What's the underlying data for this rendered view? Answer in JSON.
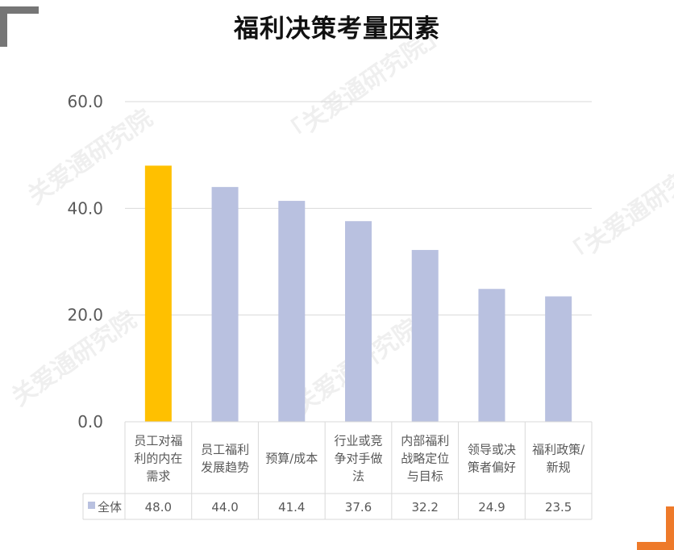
{
  "chart_data": {
    "type": "bar",
    "title": "福利决策考量因素",
    "categories": [
      [
        "员工对福",
        "利的内在",
        "需求"
      ],
      [
        "员工福利",
        "发展趋势"
      ],
      [
        "预算/成本"
      ],
      [
        "行业或竞",
        "争对手做",
        "法"
      ],
      [
        "内部福利",
        "战略定位",
        "与目标"
      ],
      [
        "领导或决",
        "策者偏好"
      ],
      [
        "福利政策/",
        "新规"
      ]
    ],
    "series": [
      {
        "name": "全体",
        "values": [
          48.0,
          44.0,
          41.4,
          37.6,
          32.2,
          24.9,
          23.5
        ]
      }
    ],
    "value_labels": [
      "48.0",
      "44.0",
      "41.4",
      "37.6",
      "32.2",
      "24.9",
      "23.5"
    ],
    "y_ticks": [
      "0.0",
      "20.0",
      "40.0",
      "60.0"
    ],
    "ylim": [
      0,
      60
    ],
    "grid": true,
    "legend": "data-table",
    "colors": {
      "highlight": "#ffc000",
      "bar": "#b9c1e0",
      "grid": "#d9d9d9",
      "axis_text": "#595959"
    },
    "highlight_index": 0
  },
  "watermarks": [
    "「关爱通研究院」",
    "关爱通研究院",
    "「关爱通研究院」",
    "关爱通研究院",
    "「关爱通研究院」"
  ]
}
